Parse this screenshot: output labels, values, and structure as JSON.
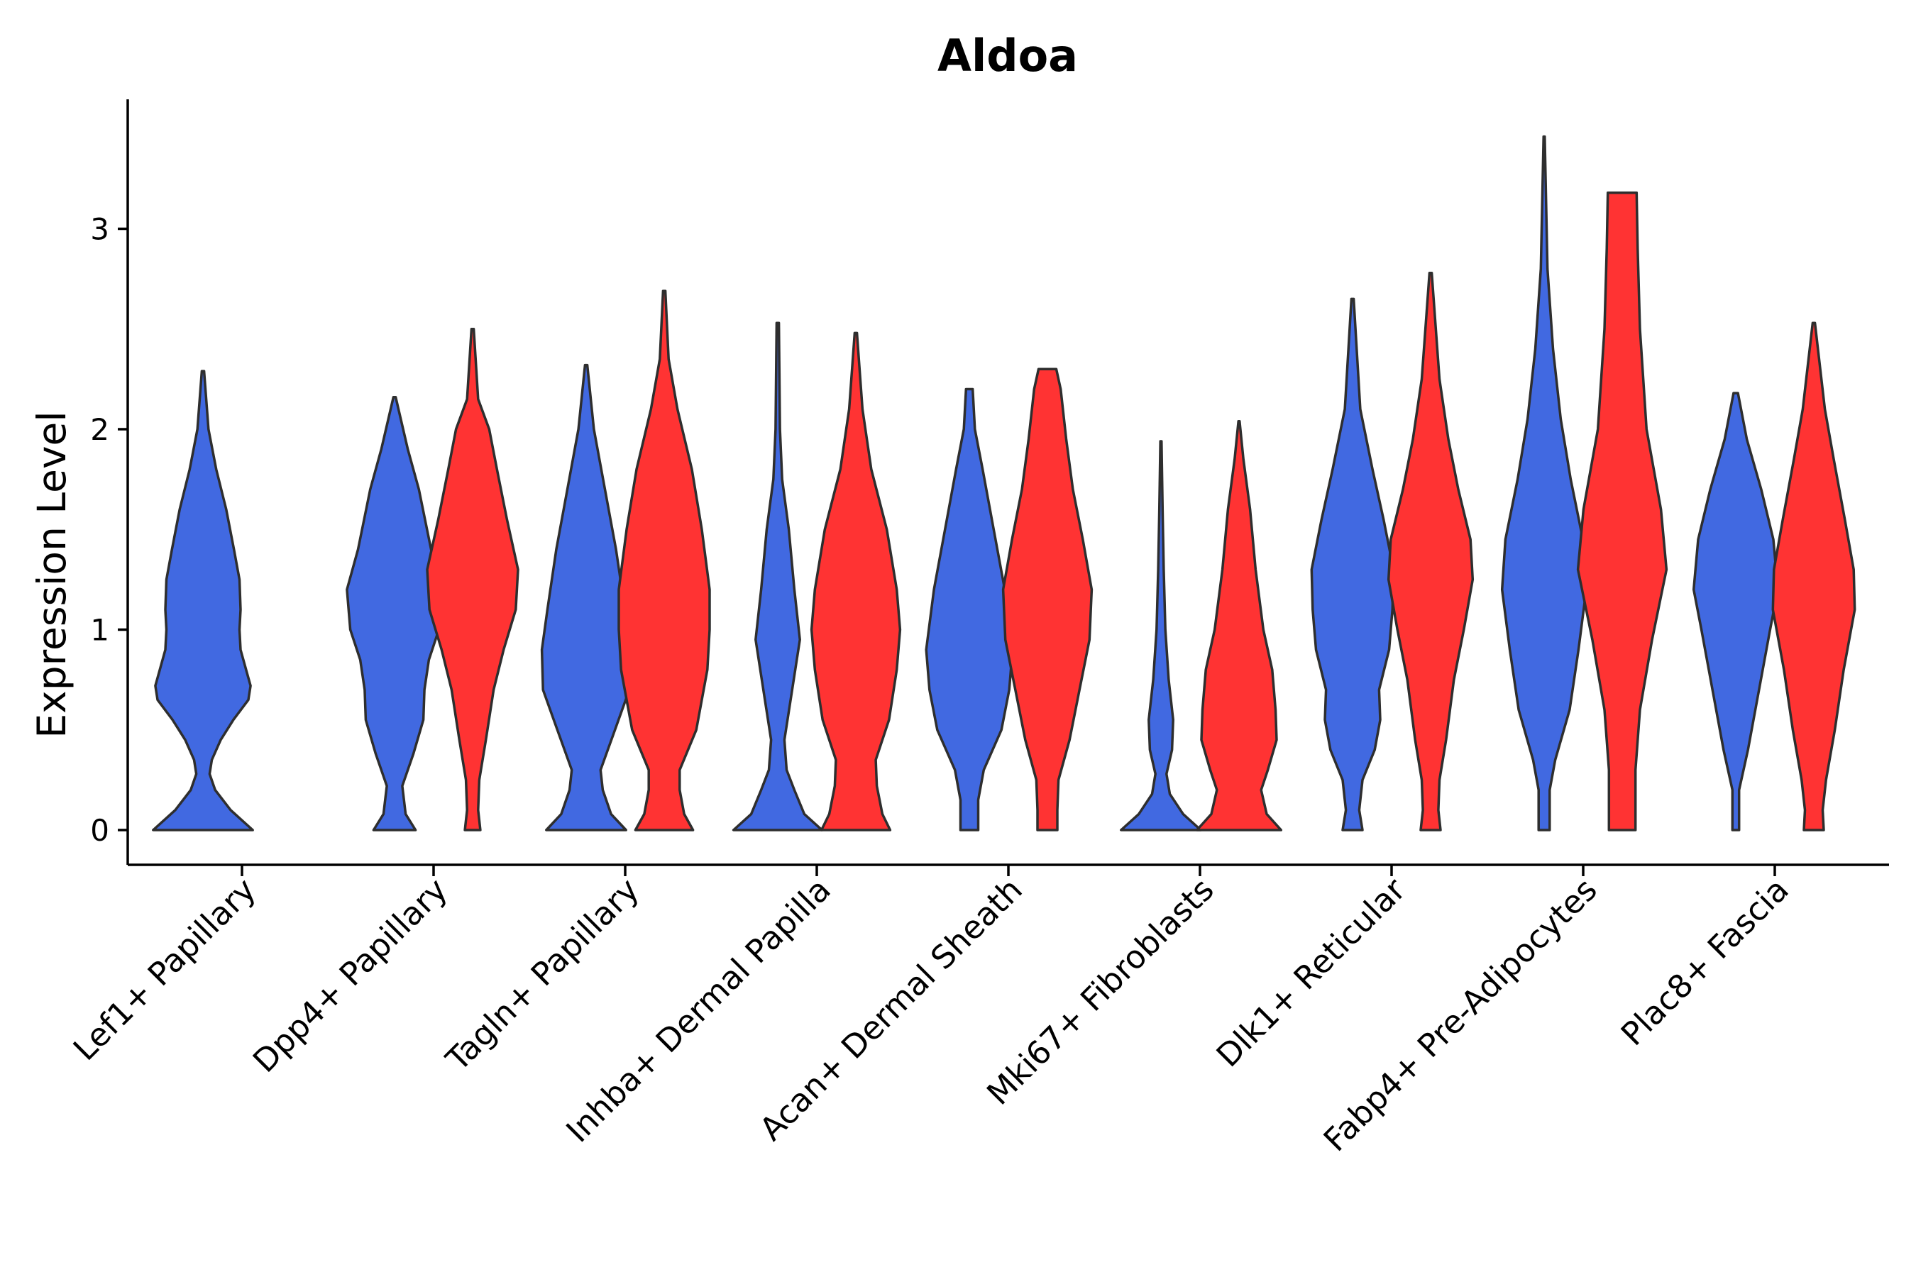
{
  "chart_data": {
    "type": "violin",
    "title": "Aldoa",
    "xlabel": "",
    "ylabel": "Expression Level",
    "ylim": [
      -0.17,
      3.65
    ],
    "yticks": [
      0,
      1,
      2,
      3
    ],
    "grid": false,
    "legend": "none",
    "groups": [
      {
        "name": "blue",
        "color": "#4169E1"
      },
      {
        "name": "red",
        "color": "#FF3333"
      }
    ],
    "categories": [
      "Lef1+ Papillary",
      "Dpp4+ Papillary",
      "Tagln+ Papillary",
      "Inhba+ Dermal Papilla",
      "Acan+ Dermal Sheath",
      "Mki67+ Fibroblasts",
      "Dlk1+ Reticular",
      "Fabp4+ Pre-Adipocytes",
      "Plac8+ Fascia"
    ],
    "violins": [
      {
        "category": "Lef1+ Papillary",
        "group": "blue",
        "max": 2.29,
        "profile": [
          [
            0,
            0.9
          ],
          [
            0.05,
            0.7
          ],
          [
            0.1,
            0.5
          ],
          [
            0.2,
            0.22
          ],
          [
            0.28,
            0.12
          ],
          [
            0.35,
            0.16
          ],
          [
            0.45,
            0.32
          ],
          [
            0.55,
            0.55
          ],
          [
            0.65,
            0.82
          ],
          [
            0.72,
            0.86
          ],
          [
            0.8,
            0.78
          ],
          [
            0.9,
            0.68
          ],
          [
            1.0,
            0.66
          ],
          [
            1.1,
            0.68
          ],
          [
            1.25,
            0.66
          ],
          [
            1.4,
            0.56
          ],
          [
            1.6,
            0.42
          ],
          [
            1.8,
            0.24
          ],
          [
            2.0,
            0.1
          ],
          [
            2.29,
            0.02
          ]
        ]
      },
      {
        "category": "Dpp4+ Papillary",
        "group": "blue",
        "max": 2.16,
        "profile": [
          [
            0,
            0.38
          ],
          [
            0.08,
            0.2
          ],
          [
            0.22,
            0.14
          ],
          [
            0.38,
            0.34
          ],
          [
            0.55,
            0.52
          ],
          [
            0.7,
            0.54
          ],
          [
            0.85,
            0.62
          ],
          [
            1.0,
            0.8
          ],
          [
            1.2,
            0.86
          ],
          [
            1.4,
            0.66
          ],
          [
            1.7,
            0.44
          ],
          [
            1.9,
            0.24
          ],
          [
            2.16,
            0.02
          ]
        ]
      },
      {
        "category": "Dpp4+ Papillary",
        "group": "red",
        "max": 2.5,
        "profile": [
          [
            0,
            0.14
          ],
          [
            0.1,
            0.1
          ],
          [
            0.25,
            0.12
          ],
          [
            0.45,
            0.24
          ],
          [
            0.7,
            0.38
          ],
          [
            0.9,
            0.56
          ],
          [
            1.1,
            0.78
          ],
          [
            1.3,
            0.82
          ],
          [
            1.55,
            0.62
          ],
          [
            1.8,
            0.44
          ],
          [
            2.0,
            0.3
          ],
          [
            2.15,
            0.1
          ],
          [
            2.5,
            0.02
          ]
        ]
      },
      {
        "category": "Tagln+ Papillary",
        "group": "blue",
        "max": 2.32,
        "profile": [
          [
            0,
            0.72
          ],
          [
            0.08,
            0.45
          ],
          [
            0.2,
            0.3
          ],
          [
            0.3,
            0.26
          ],
          [
            0.5,
            0.52
          ],
          [
            0.7,
            0.78
          ],
          [
            0.9,
            0.8
          ],
          [
            1.1,
            0.7
          ],
          [
            1.4,
            0.54
          ],
          [
            1.7,
            0.34
          ],
          [
            2.0,
            0.14
          ],
          [
            2.32,
            0.02
          ]
        ]
      },
      {
        "category": "Tagln+ Papillary",
        "group": "red",
        "max": 2.69,
        "profile": [
          [
            0,
            0.52
          ],
          [
            0.08,
            0.36
          ],
          [
            0.2,
            0.28
          ],
          [
            0.3,
            0.28
          ],
          [
            0.5,
            0.58
          ],
          [
            0.8,
            0.78
          ],
          [
            1.0,
            0.82
          ],
          [
            1.2,
            0.82
          ],
          [
            1.5,
            0.68
          ],
          [
            1.8,
            0.5
          ],
          [
            2.1,
            0.24
          ],
          [
            2.35,
            0.08
          ],
          [
            2.69,
            0.02
          ]
        ]
      },
      {
        "category": "Inhba+ Dermal Papilla",
        "group": "blue",
        "max": 2.53,
        "profile": [
          [
            0,
            0.8
          ],
          [
            0.08,
            0.48
          ],
          [
            0.2,
            0.3
          ],
          [
            0.3,
            0.16
          ],
          [
            0.45,
            0.12
          ],
          [
            0.7,
            0.26
          ],
          [
            0.95,
            0.4
          ],
          [
            1.2,
            0.3
          ],
          [
            1.5,
            0.2
          ],
          [
            1.75,
            0.08
          ],
          [
            2.0,
            0.04
          ],
          [
            2.53,
            0.02
          ]
        ]
      },
      {
        "category": "Inhba+ Dermal Papilla",
        "group": "red",
        "max": 2.48,
        "profile": [
          [
            0,
            0.62
          ],
          [
            0.08,
            0.48
          ],
          [
            0.22,
            0.38
          ],
          [
            0.35,
            0.36
          ],
          [
            0.55,
            0.6
          ],
          [
            0.8,
            0.74
          ],
          [
            1.0,
            0.8
          ],
          [
            1.2,
            0.74
          ],
          [
            1.5,
            0.56
          ],
          [
            1.8,
            0.28
          ],
          [
            2.1,
            0.12
          ],
          [
            2.48,
            0.02
          ]
        ]
      },
      {
        "category": "Acan+ Dermal Sheath",
        "group": "blue",
        "max": 2.2,
        "profile": [
          [
            0,
            0.16
          ],
          [
            0.15,
            0.16
          ],
          [
            0.3,
            0.26
          ],
          [
            0.5,
            0.58
          ],
          [
            0.7,
            0.72
          ],
          [
            0.9,
            0.78
          ],
          [
            1.2,
            0.64
          ],
          [
            1.5,
            0.44
          ],
          [
            1.8,
            0.24
          ],
          [
            2.0,
            0.1
          ],
          [
            2.2,
            0.06
          ]
        ]
      },
      {
        "category": "Acan+ Dermal Sheath",
        "group": "red",
        "max": 2.3,
        "profile": [
          [
            0,
            0.18
          ],
          [
            0.1,
            0.18
          ],
          [
            0.25,
            0.2
          ],
          [
            0.45,
            0.4
          ],
          [
            0.7,
            0.58
          ],
          [
            0.95,
            0.76
          ],
          [
            1.2,
            0.8
          ],
          [
            1.45,
            0.64
          ],
          [
            1.7,
            0.46
          ],
          [
            1.95,
            0.34
          ],
          [
            2.2,
            0.24
          ],
          [
            2.3,
            0.16
          ]
        ]
      },
      {
        "category": "Mki67+ Fibroblasts",
        "group": "blue",
        "max": 1.94,
        "profile": [
          [
            0,
            0.72
          ],
          [
            0.08,
            0.4
          ],
          [
            0.18,
            0.16
          ],
          [
            0.28,
            0.1
          ],
          [
            0.4,
            0.2
          ],
          [
            0.55,
            0.22
          ],
          [
            0.75,
            0.14
          ],
          [
            1.0,
            0.08
          ],
          [
            1.3,
            0.05
          ],
          [
            1.6,
            0.03
          ],
          [
            1.94,
            0.01
          ]
        ]
      },
      {
        "category": "Mki67+ Fibroblasts",
        "group": "red",
        "max": 2.04,
        "profile": [
          [
            0,
            0.76
          ],
          [
            0.08,
            0.5
          ],
          [
            0.2,
            0.4
          ],
          [
            0.3,
            0.52
          ],
          [
            0.45,
            0.68
          ],
          [
            0.6,
            0.66
          ],
          [
            0.8,
            0.6
          ],
          [
            1.0,
            0.44
          ],
          [
            1.3,
            0.3
          ],
          [
            1.6,
            0.2
          ],
          [
            1.85,
            0.08
          ],
          [
            2.04,
            0.01
          ]
        ]
      },
      {
        "category": "Dlk1+ Reticular",
        "group": "blue",
        "max": 2.65,
        "profile": [
          [
            0,
            0.18
          ],
          [
            0.1,
            0.12
          ],
          [
            0.25,
            0.18
          ],
          [
            0.4,
            0.4
          ],
          [
            0.55,
            0.5
          ],
          [
            0.7,
            0.48
          ],
          [
            0.9,
            0.66
          ],
          [
            1.1,
            0.72
          ],
          [
            1.3,
            0.74
          ],
          [
            1.55,
            0.56
          ],
          [
            1.8,
            0.36
          ],
          [
            2.1,
            0.14
          ],
          [
            2.65,
            0.02
          ]
        ]
      },
      {
        "category": "Dlk1+ Reticular",
        "group": "red",
        "max": 2.78,
        "profile": [
          [
            0,
            0.18
          ],
          [
            0.1,
            0.14
          ],
          [
            0.25,
            0.16
          ],
          [
            0.45,
            0.28
          ],
          [
            0.75,
            0.42
          ],
          [
            1.0,
            0.6
          ],
          [
            1.25,
            0.76
          ],
          [
            1.45,
            0.72
          ],
          [
            1.7,
            0.5
          ],
          [
            1.95,
            0.32
          ],
          [
            2.25,
            0.16
          ],
          [
            2.78,
            0.02
          ]
        ]
      },
      {
        "category": "Fabp4+ Pre-Adipocytes",
        "group": "blue",
        "max": 3.46,
        "profile": [
          [
            0,
            0.1
          ],
          [
            0.2,
            0.1
          ],
          [
            0.35,
            0.2
          ],
          [
            0.6,
            0.46
          ],
          [
            0.9,
            0.62
          ],
          [
            1.2,
            0.76
          ],
          [
            1.45,
            0.7
          ],
          [
            1.75,
            0.48
          ],
          [
            2.05,
            0.3
          ],
          [
            2.4,
            0.16
          ],
          [
            2.8,
            0.06
          ],
          [
            3.46,
            0.01
          ]
        ]
      },
      {
        "category": "Fabp4+ Pre-Adipocytes",
        "group": "red",
        "max": 3.18,
        "profile": [
          [
            0,
            0.24
          ],
          [
            0.3,
            0.24
          ],
          [
            0.6,
            0.32
          ],
          [
            0.95,
            0.54
          ],
          [
            1.3,
            0.8
          ],
          [
            1.6,
            0.7
          ],
          [
            2.0,
            0.44
          ],
          [
            2.5,
            0.32
          ],
          [
            2.9,
            0.28
          ],
          [
            3.18,
            0.26
          ]
        ]
      },
      {
        "category": "Plac8+ Fascia",
        "group": "blue",
        "max": 2.18,
        "profile": [
          [
            0,
            0.06
          ],
          [
            0.2,
            0.06
          ],
          [
            0.4,
            0.22
          ],
          [
            0.7,
            0.42
          ],
          [
            1.0,
            0.62
          ],
          [
            1.2,
            0.76
          ],
          [
            1.45,
            0.68
          ],
          [
            1.7,
            0.46
          ],
          [
            1.95,
            0.2
          ],
          [
            2.18,
            0.04
          ]
        ]
      },
      {
        "category": "Plac8+ Fascia",
        "group": "red",
        "max": 2.53,
        "profile": [
          [
            0,
            0.18
          ],
          [
            0.1,
            0.16
          ],
          [
            0.25,
            0.22
          ],
          [
            0.5,
            0.38
          ],
          [
            0.8,
            0.54
          ],
          [
            1.1,
            0.74
          ],
          [
            1.3,
            0.72
          ],
          [
            1.55,
            0.56
          ],
          [
            1.85,
            0.36
          ],
          [
            2.1,
            0.2
          ],
          [
            2.53,
            0.02
          ]
        ]
      }
    ]
  }
}
